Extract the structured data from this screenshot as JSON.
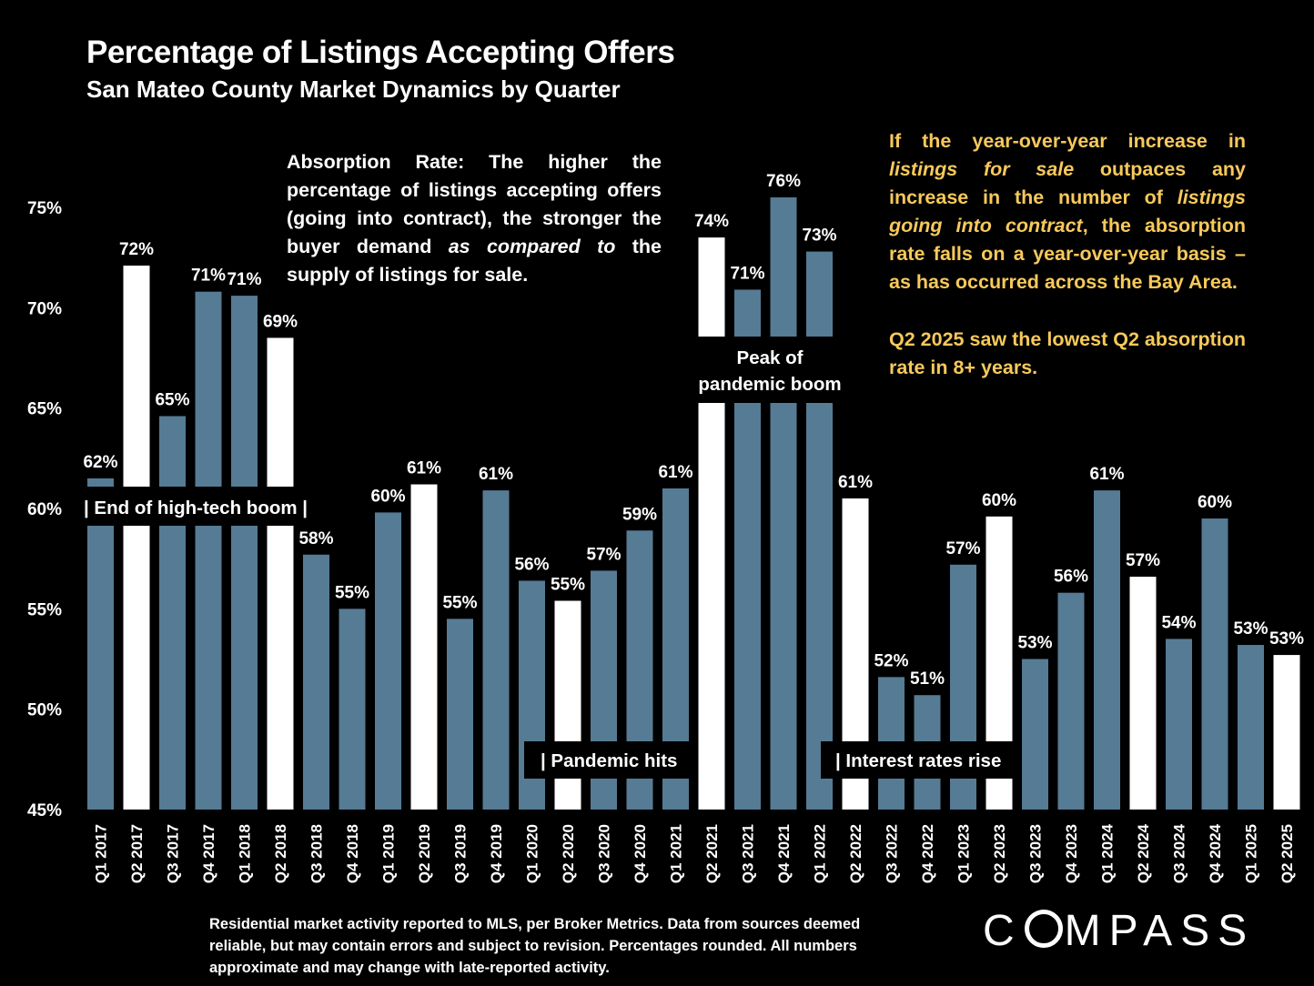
{
  "header": {
    "title": "Percentage of Listings Accepting Offers",
    "subtitle": "San Mateo County Market Dynamics by Quarter"
  },
  "callouts": {
    "left": {
      "part1": "Absorption Rate: The higher the percentage of listings accepting offers (going into contract), the stronger the buyer demand ",
      "italic": "as compared to",
      "part2": " the supply of listings for sale."
    },
    "right_p1": {
      "a": "If the year-over-year increase in ",
      "b": "listings for sale",
      "c": " outpaces any increase in the number of ",
      "d": "listings going into contract",
      "e": ", the absorption rate falls on a year-over-year basis – as has occurred across the Bay Area."
    },
    "right_p2": "Q2 2025 saw the lowest Q2 absorption rate in 8+ years."
  },
  "footnote": "Residential market activity reported to MLS, per Broker Metrics. Data from sources deemed reliable, but may contain errors and subject to revision. Percentages rounded. All numbers approximate and may change with late-reported activity.",
  "logo": {
    "before": "C",
    "after": "MPASS"
  },
  "colors": {
    "bar_default": "#567b94",
    "bar_q2": "#ffffff",
    "background": "#000000",
    "accent_text": "#f7c95b"
  },
  "chart_data": {
    "type": "bar",
    "title": "Percentage of Listings Accepting Offers",
    "subtitle": "San Mateo County Market Dynamics by Quarter",
    "xlabel": "",
    "ylabel": "",
    "ylim": [
      45,
      77
    ],
    "yticks": [
      "45%",
      "50%",
      "55%",
      "60%",
      "65%",
      "70%",
      "75%"
    ],
    "ytick_values": [
      45,
      50,
      55,
      60,
      65,
      70,
      75
    ],
    "categories": [
      "Q1 2017",
      "Q2 2017",
      "Q3 2017",
      "Q4 2017",
      "Q1 2018",
      "Q2 2018",
      "Q3 2018",
      "Q4 2018",
      "Q1 2019",
      "Q2 2019",
      "Q3 2019",
      "Q4 2019",
      "Q1 2020",
      "Q2 2020",
      "Q3 2020",
      "Q4 2020",
      "Q1 2021",
      "Q2 2021",
      "Q3 2021",
      "Q4 2021",
      "Q1 2022",
      "Q2 2022",
      "Q3 2022",
      "Q4 2022",
      "Q1 2023",
      "Q2 2023",
      "Q3 2023",
      "Q4 2023",
      "Q1 2024",
      "Q2 2024",
      "Q3 2024",
      "Q4 2024",
      "Q1 2025",
      "Q2 2025"
    ],
    "values": [
      61.5,
      72.1,
      64.6,
      70.8,
      70.6,
      68.5,
      57.7,
      55.0,
      59.8,
      61.2,
      54.5,
      60.9,
      56.4,
      55.4,
      56.9,
      58.9,
      61.0,
      73.5,
      70.9,
      75.5,
      72.8,
      60.5,
      51.6,
      50.7,
      57.2,
      59.6,
      52.5,
      55.8,
      60.9,
      56.6,
      53.5,
      59.5,
      53.2,
      52.7
    ],
    "data_labels": [
      "62%",
      "72%",
      "65%",
      "71%",
      "71%",
      "69%",
      "58%",
      "55%",
      "60%",
      "61%",
      "55%",
      "61%",
      "56%",
      "55%",
      "57%",
      "59%",
      "61%",
      "74%",
      "71%",
      "76%",
      "73%",
      "61%",
      "52%",
      "51%",
      "57%",
      "60%",
      "53%",
      "56%",
      "61%",
      "57%",
      "54%",
      "60%",
      "53%",
      "53%"
    ],
    "highlight": "Q2 quarters shown in white",
    "annotations": [
      {
        "text": "|  End of high-tech boom  |"
      },
      {
        "text": "| Pandemic hits"
      },
      {
        "text": "Peak of"
      },
      {
        "text": "pandemic boom"
      },
      {
        "text": "| Interest rates rise"
      }
    ]
  }
}
